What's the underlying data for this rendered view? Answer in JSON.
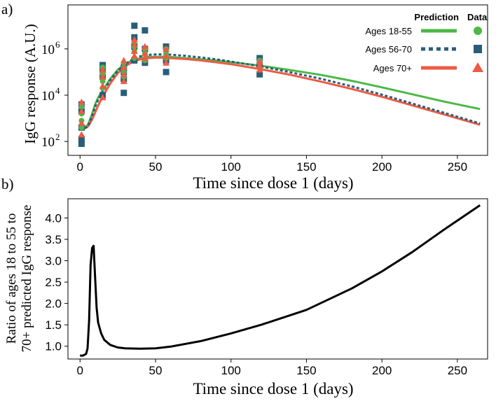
{
  "colors": {
    "group1": "#4db848",
    "group2": "#2a5d78",
    "group3": "#ee5a45",
    "ratio": "#000000",
    "axis": "#000000"
  },
  "chart_data": [
    {
      "type": "scatter+line",
      "panel_label": "a)",
      "title": "",
      "xlabel": "Time since dose 1 (days)",
      "ylabel": "IgG response (A.U.)",
      "yscale": "log",
      "xlim": [
        -8,
        270
      ],
      "ylim_log10": [
        1.4,
        7.9
      ],
      "x_ticks": [
        0,
        50,
        100,
        150,
        200,
        250
      ],
      "y_ticks": [
        {
          "label_base": "10",
          "label_exp": "2",
          "value": 100
        },
        {
          "label_base": "10",
          "label_exp": "4",
          "value": 10000
        },
        {
          "label_base": "10",
          "label_exp": "6",
          "value": 1000000
        }
      ],
      "legend": {
        "position": "top-right",
        "header_prediction": "Prediction",
        "header_data": "Data",
        "entries": [
          {
            "label": "Ages 18-55",
            "line_style": "solid",
            "marker": "circle"
          },
          {
            "label": "Ages 56-70",
            "line_style": "dotted",
            "marker": "square"
          },
          {
            "label": "Ages 70+",
            "line_style": "solid",
            "marker": "triangle"
          }
        ]
      },
      "prediction_series": [
        {
          "name": "Ages 18-55",
          "x": [
            0,
            3,
            5,
            6,
            8,
            10,
            12,
            15,
            20,
            25,
            30,
            35,
            40,
            45,
            50,
            55,
            60,
            70,
            80,
            90,
            100,
            120,
            140,
            160,
            180,
            200,
            220,
            240,
            265
          ],
          "log10_y": [
            2.65,
            2.62,
            2.7,
            2.85,
            3.2,
            3.6,
            3.9,
            4.2,
            4.7,
            5.1,
            5.35,
            5.5,
            5.6,
            5.65,
            5.66,
            5.66,
            5.65,
            5.6,
            5.55,
            5.5,
            5.43,
            5.27,
            5.08,
            4.87,
            4.62,
            4.34,
            4.04,
            3.74,
            3.4
          ]
        },
        {
          "name": "Ages 56-70",
          "x": [
            0,
            3,
            5,
            6,
            8,
            10,
            12,
            15,
            20,
            25,
            30,
            35,
            40,
            45,
            50,
            55,
            60,
            70,
            80,
            90,
            100,
            120,
            140,
            160,
            180,
            200,
            220,
            240,
            265
          ],
          "log10_y": [
            2.6,
            2.56,
            2.65,
            2.78,
            3.1,
            3.5,
            3.8,
            4.15,
            4.65,
            5.05,
            5.35,
            5.55,
            5.68,
            5.74,
            5.76,
            5.76,
            5.75,
            5.7,
            5.63,
            5.55,
            5.45,
            5.24,
            4.98,
            4.7,
            4.38,
            4.02,
            3.64,
            3.26,
            2.78
          ]
        },
        {
          "name": "Ages 70+",
          "x": [
            0,
            3,
            5,
            6,
            8,
            10,
            12,
            15,
            20,
            25,
            30,
            35,
            40,
            45,
            50,
            55,
            60,
            70,
            80,
            90,
            100,
            120,
            140,
            160,
            180,
            200,
            220,
            240,
            265
          ],
          "log10_y": [
            2.6,
            2.56,
            2.63,
            2.72,
            2.95,
            3.25,
            3.55,
            3.95,
            4.5,
            4.95,
            5.25,
            5.45,
            5.55,
            5.6,
            5.62,
            5.62,
            5.6,
            5.56,
            5.5,
            5.42,
            5.34,
            5.12,
            4.87,
            4.58,
            4.27,
            3.93,
            3.56,
            3.19,
            2.72
          ]
        }
      ],
      "data_series": [
        {
          "name": "Ages 18-55",
          "marker": "circle",
          "points_log10": [
            [
              1,
              2.6
            ],
            [
              1,
              2.9
            ],
            [
              1,
              3.2
            ],
            [
              1,
              3.5
            ],
            [
              15,
              4.3
            ],
            [
              15,
              4.6
            ],
            [
              15,
              4.9
            ],
            [
              15,
              5.2
            ],
            [
              29,
              4.8
            ],
            [
              29,
              5.0
            ],
            [
              29,
              5.2
            ],
            [
              29,
              5.4
            ],
            [
              36,
              5.6
            ],
            [
              36,
              5.9
            ],
            [
              36,
              6.1
            ],
            [
              36,
              6.3
            ],
            [
              43,
              5.5
            ],
            [
              43,
              5.8
            ],
            [
              43,
              6.0
            ],
            [
              57,
              5.6
            ],
            [
              57,
              5.8
            ],
            [
              57,
              6.0
            ],
            [
              119,
              5.2
            ],
            [
              119,
              5.4
            ],
            [
              119,
              5.5
            ]
          ]
        },
        {
          "name": "Ages 56-70",
          "marker": "square",
          "points_log10": [
            [
              1,
              1.9
            ],
            [
              1,
              2.1
            ],
            [
              1,
              2.6
            ],
            [
              1,
              3.3
            ],
            [
              1,
              3.6
            ],
            [
              15,
              4.0
            ],
            [
              15,
              4.8
            ],
            [
              15,
              5.1
            ],
            [
              15,
              5.3
            ],
            [
              29,
              4.1
            ],
            [
              29,
              4.7
            ],
            [
              29,
              5.0
            ],
            [
              29,
              5.2
            ],
            [
              36,
              5.5
            ],
            [
              36,
              6.1
            ],
            [
              36,
              6.5
            ],
            [
              36,
              7.0
            ],
            [
              43,
              5.4
            ],
            [
              43,
              6.0
            ],
            [
              43,
              6.8
            ],
            [
              57,
              5.0
            ],
            [
              57,
              5.5
            ],
            [
              57,
              6.1
            ],
            [
              119,
              4.9
            ],
            [
              119,
              5.3
            ],
            [
              119,
              5.6
            ]
          ]
        },
        {
          "name": "Ages 70+",
          "marker": "triangle",
          "points_log10": [
            [
              1,
              2.3
            ],
            [
              1,
              2.8
            ],
            [
              1,
              3.3
            ],
            [
              1,
              3.7
            ],
            [
              15,
              3.9
            ],
            [
              15,
              4.4
            ],
            [
              15,
              4.8
            ],
            [
              15,
              5.1
            ],
            [
              29,
              4.6
            ],
            [
              29,
              4.9
            ],
            [
              29,
              5.2
            ],
            [
              29,
              5.5
            ],
            [
              36,
              5.7
            ],
            [
              36,
              5.9
            ],
            [
              36,
              6.2
            ],
            [
              36,
              6.4
            ],
            [
              43,
              5.6
            ],
            [
              43,
              5.8
            ],
            [
              43,
              6.1
            ],
            [
              57,
              5.4
            ],
            [
              57,
              5.7
            ],
            [
              57,
              6.0
            ],
            [
              119,
              5.1
            ],
            [
              119,
              5.3
            ],
            [
              119,
              5.45
            ]
          ]
        }
      ]
    },
    {
      "type": "line",
      "panel_label": "b)",
      "title": "",
      "xlabel": "Time since dose 1 (days)",
      "ylabel_line1": "Ratio of ages 18 to 55  to",
      "ylabel_line2": "70+ predicted IgG response",
      "xlim": [
        -8,
        270
      ],
      "ylim": [
        0.7,
        4.45
      ],
      "x_ticks": [
        0,
        50,
        100,
        150,
        200,
        250
      ],
      "y_ticks": [
        "1.0",
        "1.5",
        "2.0",
        "2.5",
        "3.0",
        "3.5",
        "4.0"
      ],
      "series": [
        {
          "name": "Ratio 18-55 to 70+",
          "x": [
            0,
            2,
            4,
            5,
            6,
            7,
            8,
            9,
            10,
            11,
            12,
            14,
            16,
            20,
            25,
            30,
            40,
            50,
            60,
            80,
            100,
            120,
            150,
            180,
            200,
            220,
            240,
            265
          ],
          "y": [
            0.78,
            0.78,
            0.82,
            0.95,
            1.6,
            2.9,
            3.3,
            3.35,
            2.6,
            1.9,
            1.55,
            1.3,
            1.15,
            1.03,
            0.97,
            0.95,
            0.94,
            0.95,
            0.99,
            1.12,
            1.3,
            1.5,
            1.85,
            2.35,
            2.75,
            3.2,
            3.7,
            4.3
          ]
        }
      ]
    }
  ]
}
